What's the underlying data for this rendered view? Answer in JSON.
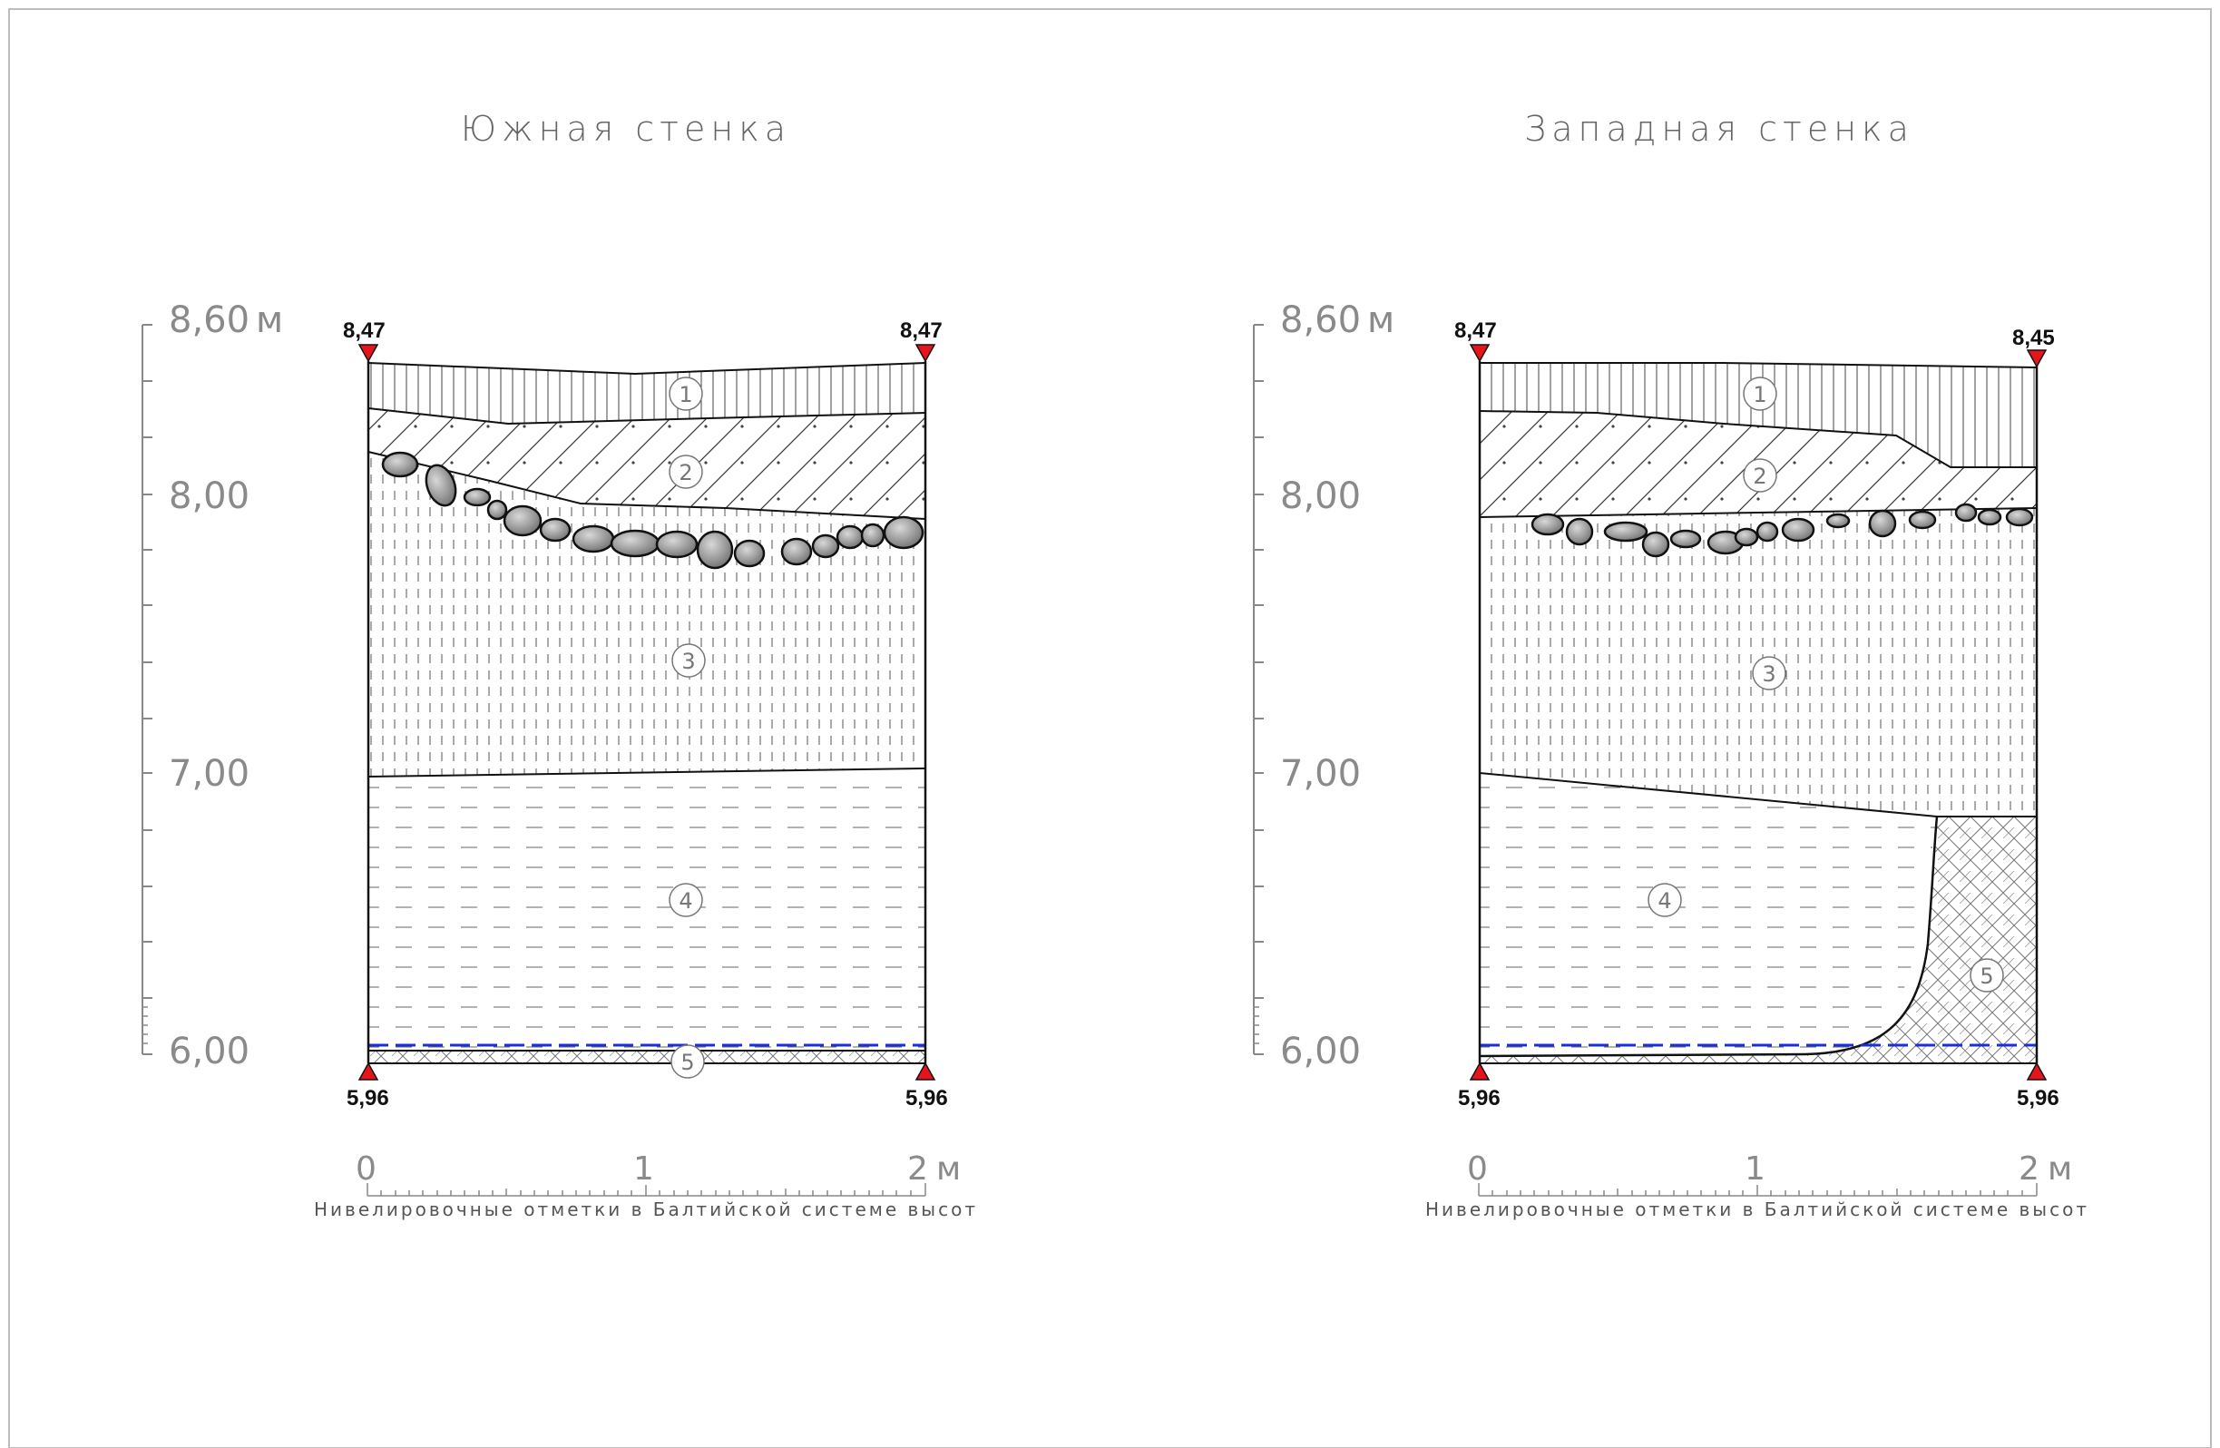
{
  "south": {
    "title": "Южная стенка",
    "elev_top": "8,60",
    "elev_mid": "8,00",
    "elev_low": "7,00",
    "elev_bottom": "6,00",
    "elev_unit": "м",
    "mark_top_left": "8,47",
    "mark_top_right": "8,47",
    "mark_bottom_left": "5,96",
    "mark_bottom_right": "5,96",
    "layers": [
      "1",
      "2",
      "3",
      "4",
      "5"
    ],
    "scale": {
      "zero": "0",
      "one": "1",
      "two": "2",
      "unit": "м"
    },
    "caption": "Нивелировочные отметки в Балтийской системе высот"
  },
  "west": {
    "title": "Западная стенка",
    "elev_top": "8,60",
    "elev_mid": "8,00",
    "elev_low": "7,00",
    "elev_bottom": "6,00",
    "elev_unit": "м",
    "mark_top_left": "8,47",
    "mark_top_right": "8,45",
    "mark_bottom_left": "5,96",
    "mark_bottom_right": "5,96",
    "layers": [
      "1",
      "2",
      "3",
      "4",
      "5"
    ],
    "scale": {
      "zero": "0",
      "one": "1",
      "two": "2",
      "unit": "м"
    },
    "caption": "Нивелировочные отметки в Балтийской системе высот"
  },
  "colors": {
    "marker": "#e8141b",
    "waterline": "#1a2fd6",
    "stone": "#9a9a9a",
    "line": "#111111"
  }
}
